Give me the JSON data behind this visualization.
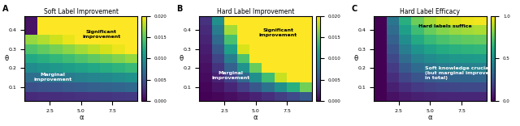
{
  "title_A": "Soft Label Improvement",
  "title_B": "Hard Label Improvement",
  "title_C": "Hard Label Efficacy",
  "xlabel": "α",
  "ylabel": "θ",
  "label_A": "A",
  "label_B": "B",
  "label_C": "C",
  "alpha_vals": [
    1.0,
    2.0,
    3.0,
    4.0,
    5.0,
    6.0,
    7.0,
    8.0,
    9.0
  ],
  "theta_vals": [
    0.05,
    0.1,
    0.15,
    0.2,
    0.25,
    0.3,
    0.35,
    0.4,
    0.45
  ],
  "cmap_AB": "viridis",
  "cmap_C": "viridis",
  "vmin_AB": 0.0,
  "vmax_AB": 0.02,
  "vmin_C": 0.0,
  "vmax_C": 1.0,
  "text_significant": "Significant\nimprovement",
  "text_marginal": "Marginal\nimprovement",
  "text_hard_suffice": "Hard labels suffice",
  "text_soft_crucial": "Soft knowledge crucial\n(but marginal improvement\nin total)",
  "text_color_white": "#ffffff",
  "text_color_black": "#000000",
  "bg_color": "#ffffff"
}
